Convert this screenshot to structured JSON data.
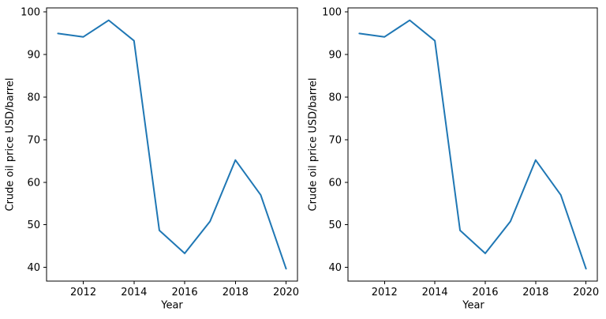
{
  "figure": {
    "background_color": "#ffffff",
    "line_color": "#1f77b4",
    "axis_color": "#000000",
    "text_color": "#000000"
  },
  "chart_data": [
    {
      "type": "line",
      "title": "",
      "xlabel": "Year",
      "ylabel": "Crude oil price USD/barrel",
      "x": [
        2011,
        2012,
        2013,
        2014,
        2015,
        2016,
        2017,
        2018,
        2019,
        2020
      ],
      "values": [
        94.9,
        94.1,
        98.0,
        93.2,
        48.7,
        43.3,
        50.8,
        65.2,
        57.0,
        39.7
      ],
      "xlim": [
        2010.55,
        2020.45
      ],
      "ylim": [
        36.8,
        100.9
      ],
      "xticks": [
        2012,
        2014,
        2016,
        2018,
        2020
      ],
      "yticks": [
        40,
        50,
        60,
        70,
        80,
        90,
        100
      ],
      "grid": false,
      "legend": null,
      "line_color": "#1f77b4"
    },
    {
      "type": "line",
      "title": "",
      "xlabel": "Year",
      "ylabel": "Crude oil price USD/barrel",
      "x": [
        2011,
        2012,
        2013,
        2014,
        2015,
        2016,
        2017,
        2018,
        2019,
        2020
      ],
      "values": [
        94.9,
        94.1,
        98.0,
        93.2,
        48.7,
        43.3,
        50.8,
        65.2,
        57.0,
        39.7
      ],
      "xlim": [
        2010.55,
        2020.45
      ],
      "ylim": [
        36.8,
        100.9
      ],
      "xticks": [
        2012,
        2014,
        2016,
        2018,
        2020
      ],
      "yticks": [
        40,
        50,
        60,
        70,
        80,
        90,
        100
      ],
      "grid": false,
      "legend": null,
      "line_color": "#1f77b4"
    }
  ]
}
